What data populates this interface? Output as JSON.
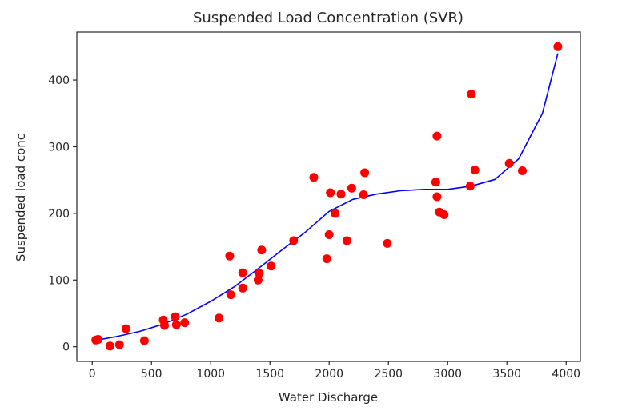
{
  "chart_data": {
    "type": "scatter",
    "title": "Suspended Load Concentration (SVR)",
    "xlabel": "Water Discharge",
    "ylabel": "Suspended load conc",
    "xlim": [
      -130,
      4120
    ],
    "ylim": [
      -22,
      472
    ],
    "xticks": [
      0,
      500,
      1000,
      1500,
      2000,
      2500,
      3000,
      3500,
      4000
    ],
    "yticks": [
      0,
      100,
      200,
      300,
      400
    ],
    "grid": false,
    "legend": "none",
    "series": [
      {
        "kind": "scatter",
        "color": "#ff0000",
        "points": [
          [
            30,
            10
          ],
          [
            50,
            11
          ],
          [
            150,
            1
          ],
          [
            230,
            3
          ],
          [
            285,
            27
          ],
          [
            440,
            9
          ],
          [
            600,
            40
          ],
          [
            610,
            32
          ],
          [
            700,
            45
          ],
          [
            710,
            33
          ],
          [
            780,
            36
          ],
          [
            1070,
            43
          ],
          [
            1160,
            136
          ],
          [
            1170,
            78
          ],
          [
            1270,
            88
          ],
          [
            1270,
            111
          ],
          [
            1400,
            100
          ],
          [
            1410,
            110
          ],
          [
            1430,
            145
          ],
          [
            1510,
            121
          ],
          [
            1700,
            159
          ],
          [
            1870,
            254
          ],
          [
            1980,
            132
          ],
          [
            2000,
            168
          ],
          [
            2010,
            231
          ],
          [
            2050,
            200
          ],
          [
            2100,
            229
          ],
          [
            2150,
            159
          ],
          [
            2190,
            238
          ],
          [
            2290,
            228
          ],
          [
            2300,
            261
          ],
          [
            2490,
            155
          ],
          [
            2900,
            247
          ],
          [
            2910,
            316
          ],
          [
            2910,
            225
          ],
          [
            2930,
            202
          ],
          [
            2970,
            198
          ],
          [
            3190,
            241
          ],
          [
            3200,
            379
          ],
          [
            3230,
            265
          ],
          [
            3520,
            275
          ],
          [
            3630,
            264
          ],
          [
            3930,
            450
          ]
        ]
      },
      {
        "kind": "line",
        "color": "#0000ff",
        "points": [
          [
            40,
            10
          ],
          [
            200,
            15
          ],
          [
            400,
            23
          ],
          [
            600,
            34
          ],
          [
            800,
            49
          ],
          [
            1000,
            68
          ],
          [
            1200,
            90
          ],
          [
            1400,
            117
          ],
          [
            1600,
            145
          ],
          [
            1800,
            172
          ],
          [
            2000,
            203
          ],
          [
            2200,
            221
          ],
          [
            2400,
            229
          ],
          [
            2600,
            234
          ],
          [
            2800,
            236
          ],
          [
            3000,
            236
          ],
          [
            3200,
            241
          ],
          [
            3400,
            251
          ],
          [
            3600,
            282
          ],
          [
            3800,
            350
          ],
          [
            3930,
            440
          ]
        ]
      }
    ]
  }
}
